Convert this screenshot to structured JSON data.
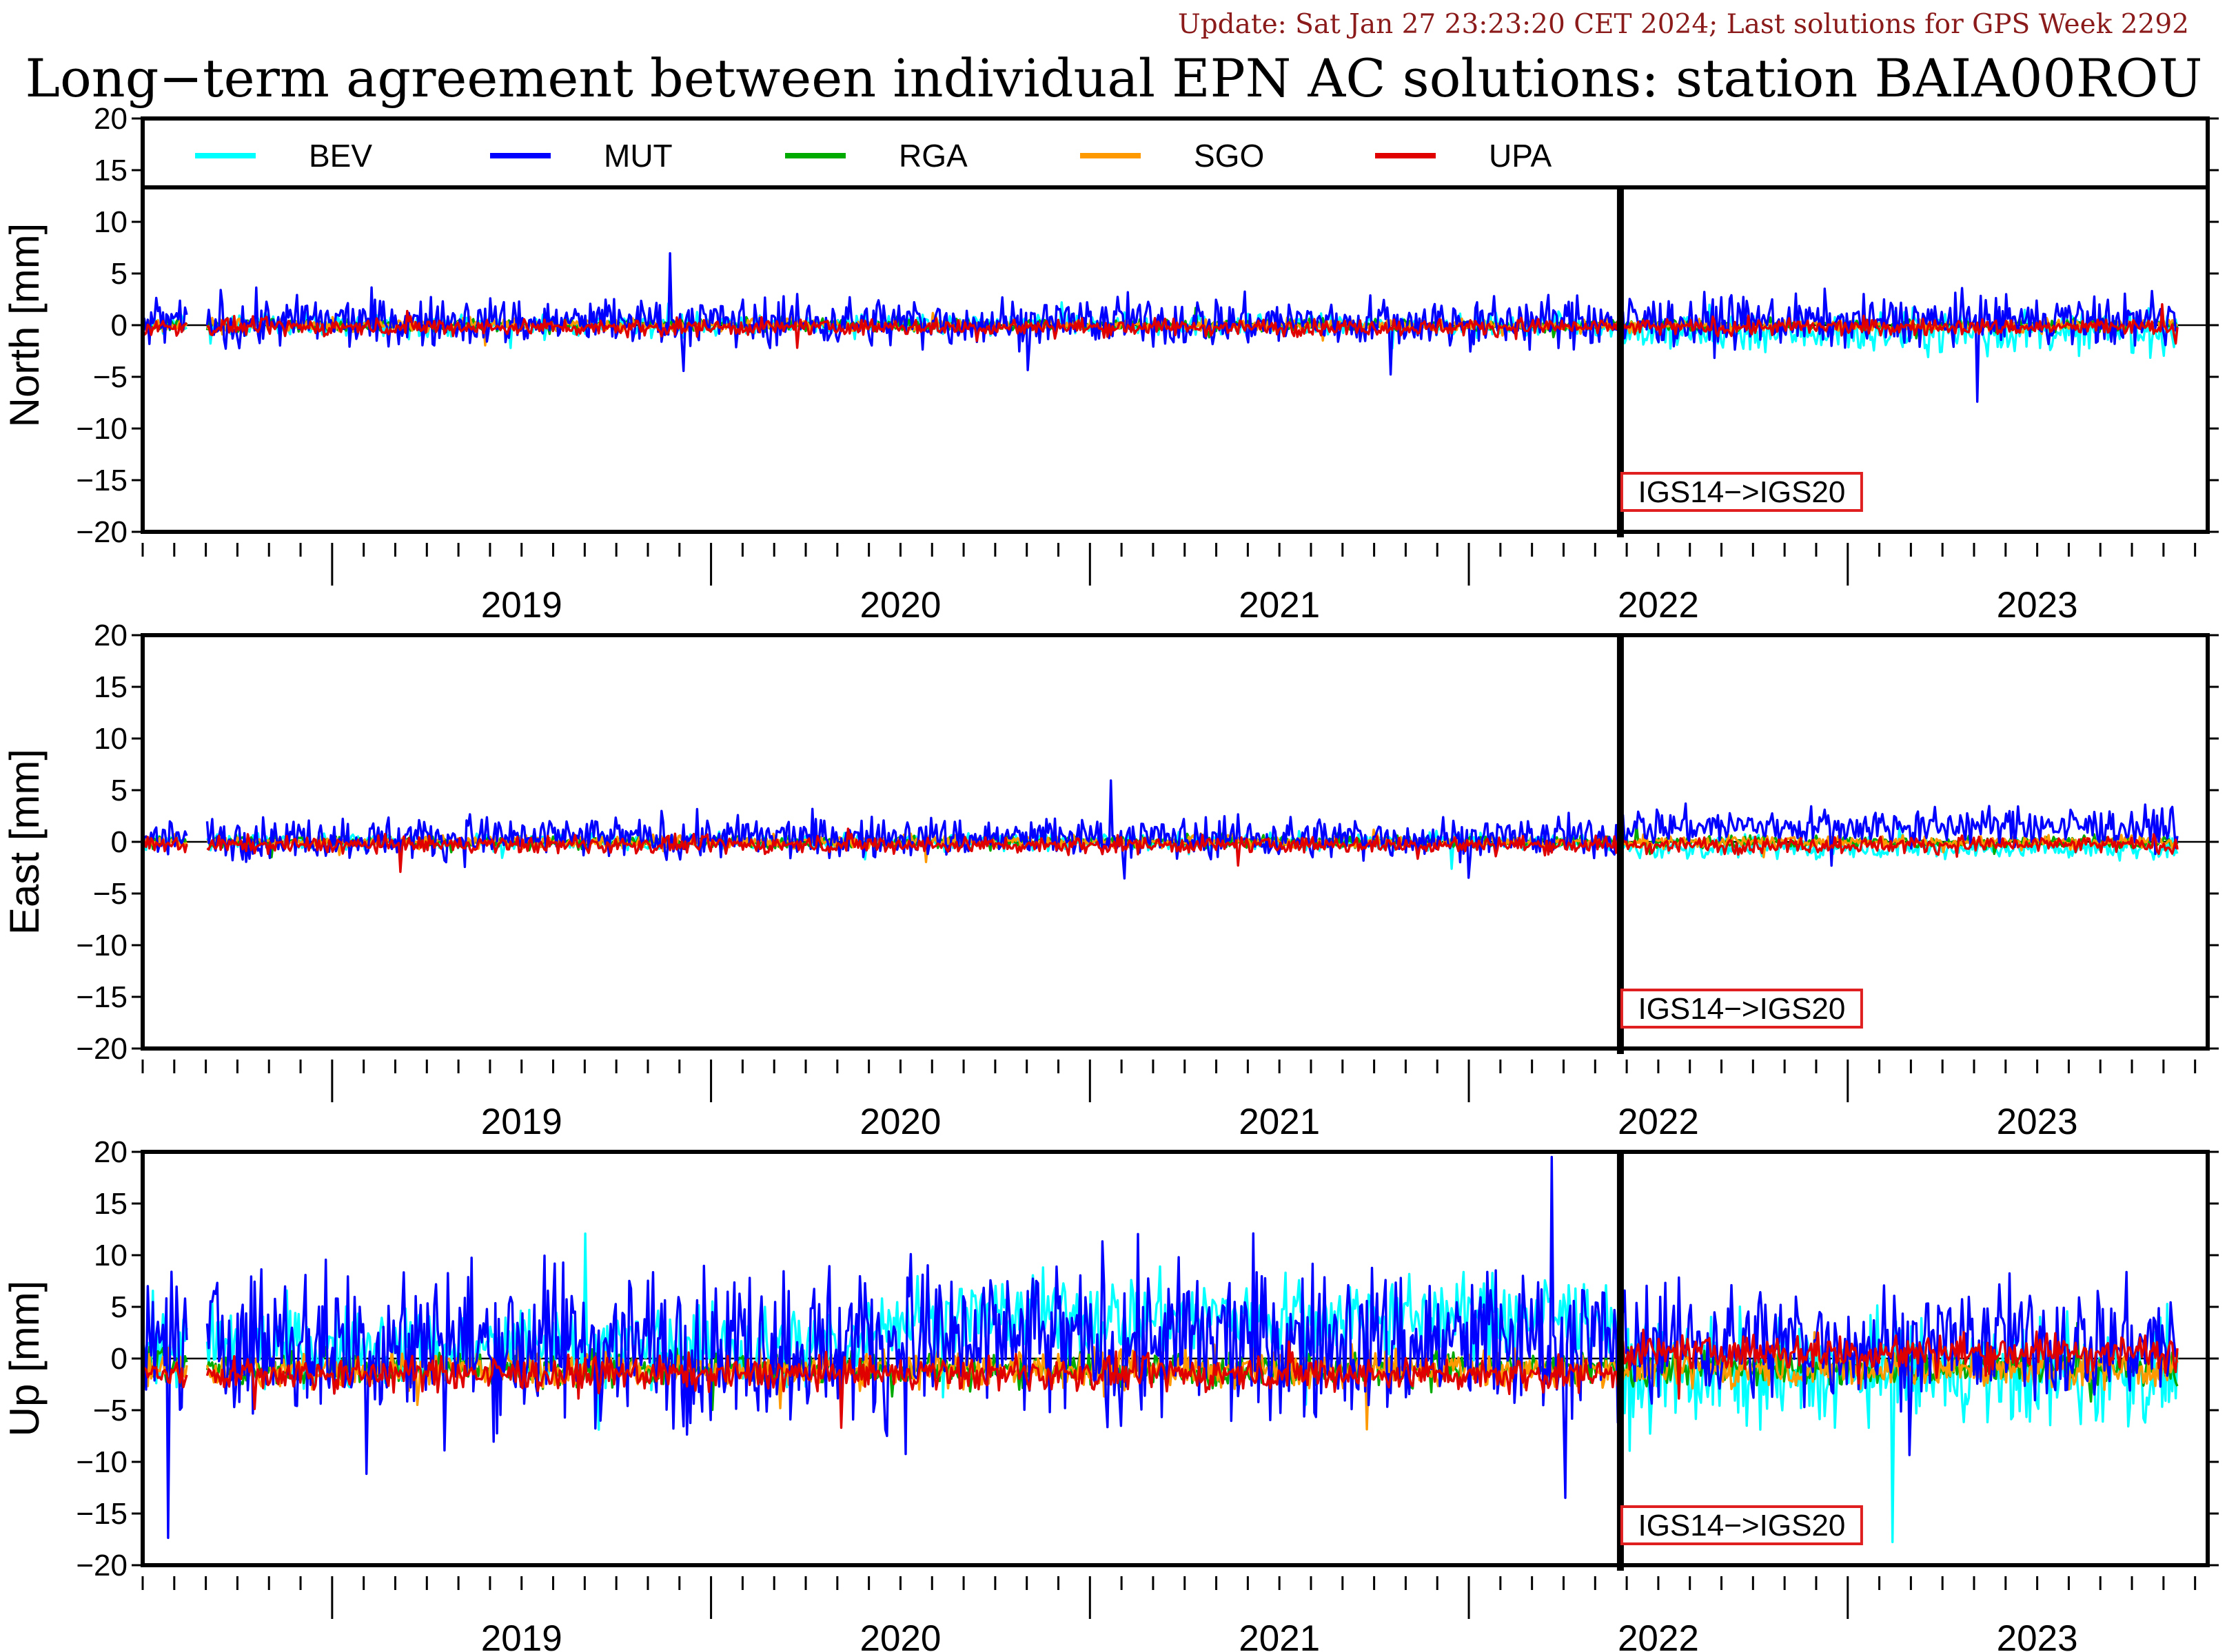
{
  "header": {
    "update_text": "Update: Sat Jan 27 23:23:20 CET 2024; Last solutions for GPS Week 2292",
    "title": "Long−term agreement between individual EPN AC solutions: station BAIA00ROU"
  },
  "colors": {
    "update": "#8b1a1a",
    "axis": "#000000",
    "annotation_box": "#e02020"
  },
  "chart_data": {
    "type": "line",
    "x_units": "decimal year",
    "xlim": [
      2018.5,
      2023.95
    ],
    "ylim": [
      -20,
      20
    ],
    "y_ticks": [
      20,
      15,
      10,
      5,
      0,
      -5,
      -10,
      -15,
      -20
    ],
    "y_tick_labels": [
      "20",
      "15",
      "10",
      "5",
      "0",
      "−5",
      "−10",
      "−15",
      "−20"
    ],
    "x_year_labels": [
      "2019",
      "2020",
      "2021",
      "2022",
      "2023"
    ],
    "grid": false,
    "legend_placement": "top, inside first panel",
    "series": [
      {
        "name": "BEV",
        "color": "#00ffff"
      },
      {
        "name": "MUT",
        "color": "#0000ff"
      },
      {
        "name": "RGA",
        "color": "#00aa00"
      },
      {
        "name": "SGO",
        "color": "#ff9900"
      },
      {
        "name": "UPA",
        "color": "#e00000"
      }
    ],
    "frame_change": {
      "x": 2022.4,
      "label": "IGS14−>IGS20"
    },
    "data_range": {
      "start": 2018.5,
      "gap": [
        2018.62,
        2018.67
      ],
      "end": 2023.87
    },
    "panels": [
      {
        "ylabel": "North [mm]",
        "series_summary": [
          {
            "name": "BEV",
            "mean": 0.0,
            "spread": 0.5,
            "late_mean": -0.6,
            "late_spread": 1.0
          },
          {
            "name": "MUT",
            "mean": 0.3,
            "spread": 1.2,
            "late_mean": 0.4,
            "late_spread": 1.2
          },
          {
            "name": "RGA",
            "mean": 0.0,
            "spread": 0.3
          },
          {
            "name": "SGO",
            "mean": 0.0,
            "spread": 0.3
          },
          {
            "name": "UPA",
            "mean": -0.2,
            "spread": 0.4
          }
        ]
      },
      {
        "ylabel": "East [mm]",
        "series_summary": [
          {
            "name": "BEV",
            "mean": 0.0,
            "spread": 0.4,
            "late_mean": -0.6,
            "late_spread": 0.5
          },
          {
            "name": "MUT",
            "mean": 0.4,
            "spread": 1.0,
            "late_mean": 1.5,
            "late_spread": 0.9
          },
          {
            "name": "RGA",
            "mean": 0.0,
            "spread": 0.3
          },
          {
            "name": "SGO",
            "mean": 0.0,
            "spread": 0.3
          },
          {
            "name": "UPA",
            "mean": -0.3,
            "spread": 0.4
          }
        ]
      },
      {
        "ylabel": "Up [mm]",
        "series_summary": [
          {
            "name": "BEV",
            "mean": 1.0,
            "spread": 2.0,
            "mid_mean": 4.0,
            "late_mean": -1.5,
            "late_spread": 2.5
          },
          {
            "name": "MUT",
            "mean": 1.5,
            "spread": 3.8,
            "late_mean": 1.5,
            "late_spread": 2.8
          },
          {
            "name": "RGA",
            "mean": -1.0,
            "spread": 0.8
          },
          {
            "name": "SGO",
            "mean": -1.0,
            "spread": 0.9
          },
          {
            "name": "UPA",
            "mean": -1.5,
            "spread": 0.8,
            "late_mean": 0.6,
            "late_spread": 0.9
          }
        ]
      }
    ]
  }
}
